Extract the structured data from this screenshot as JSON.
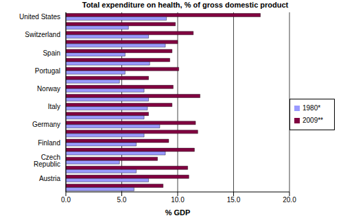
{
  "chart_data": {
    "type": "bar",
    "orientation": "horizontal",
    "title": "Total expenditure on health, % of gross domestic product",
    "x_label": "% GDP",
    "categories": [
      "United States",
      null,
      "Switzerland",
      null,
      "Spain",
      null,
      "Portugal",
      null,
      "Norway",
      null,
      "Italy",
      null,
      "Germany",
      null,
      "Finland",
      null,
      "Czech Republic",
      null,
      "Austria",
      null
    ],
    "series": [
      {
        "name": "2009**",
        "color": "#800040",
        "values": [
          17.4,
          9.8,
          11.4,
          10.0,
          9.5,
          9.3,
          10.1,
          7.4,
          9.6,
          12.0,
          9.5,
          7.4,
          11.6,
          11.8,
          9.2,
          11.5,
          8.2,
          10.9,
          11.0,
          8.7
        ]
      },
      {
        "name": "1980*",
        "color": "#9999ff",
        "values": [
          9.0,
          5.6,
          7.4,
          8.9,
          5.3,
          7.5,
          5.3,
          4.8,
          7.0,
          7.4,
          7.3,
          7.0,
          8.4,
          7.0,
          6.3,
          8.9,
          4.8,
          6.3,
          7.4,
          6.1
        ]
      }
    ],
    "xlim": [
      0,
      20
    ],
    "xticks": [
      {
        "value": 0,
        "label": "0.0"
      },
      {
        "value": 5,
        "label": "5.0"
      },
      {
        "value": 10,
        "label": "10.0"
      },
      {
        "value": 15,
        "label": "15.0"
      },
      {
        "value": 20,
        "label": "20.0"
      }
    ],
    "grid": true,
    "legend": "right"
  }
}
